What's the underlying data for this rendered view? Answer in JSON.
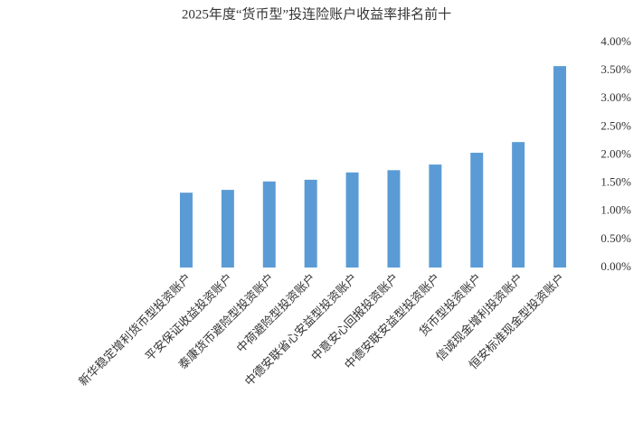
{
  "chart_data": {
    "type": "bar",
    "title": "2025年度“货币型”投连险账户收益率排名前十",
    "categories": [
      "新华稳定增利货币型投资账户",
      "平安保证收益投资账户",
      "泰康货币避险型投资账户",
      "中荷避险型投资账户",
      "中德安联省心安益型投资账户",
      "中意安心回报投资账户",
      "中德安联安益型投资账户",
      "货币型投资账户",
      "信诚现金增利投资账户",
      "恒安标准现金型投资账户"
    ],
    "values": [
      1.33,
      1.38,
      1.53,
      1.56,
      1.69,
      1.73,
      1.83,
      2.04,
      2.23,
      3.58
    ],
    "color": "#5b9bd5",
    "ylim": [
      0,
      4
    ],
    "yticks": [
      {
        "value": 0,
        "label": "0.00%"
      },
      {
        "value": 0.5,
        "label": "0.50%"
      },
      {
        "value": 1,
        "label": "1.00%"
      },
      {
        "value": 1.5,
        "label": "1.50%"
      },
      {
        "value": 2,
        "label": "2.00%"
      },
      {
        "value": 2.5,
        "label": "2.50%"
      },
      {
        "value": 3,
        "label": "3.00%"
      },
      {
        "value": 3.5,
        "label": "3.50%"
      },
      {
        "value": 4,
        "label": "4.00%"
      }
    ],
    "grid": false
  }
}
